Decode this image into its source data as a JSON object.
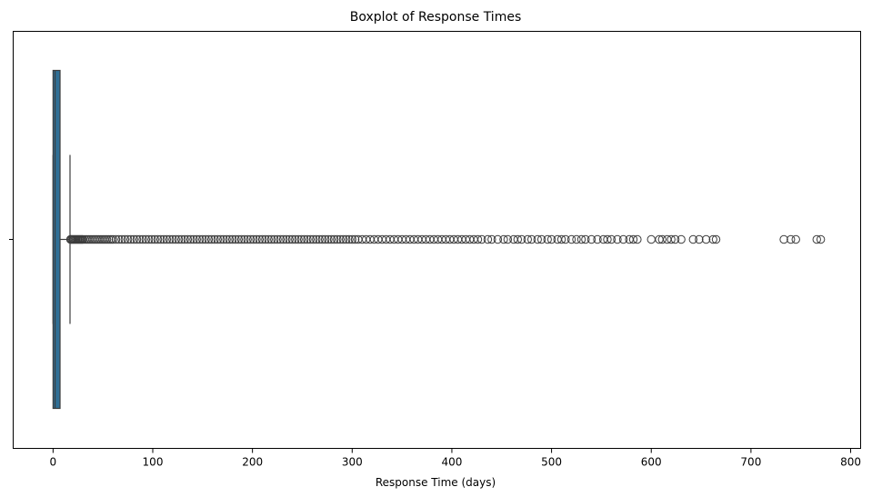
{
  "chart_data": {
    "type": "boxplot",
    "title": "Boxplot of Response Times",
    "xlabel": "Response Time (days)",
    "ylabel": "",
    "orientation": "horizontal",
    "xlim": [
      -40,
      810
    ],
    "xticks": [
      0,
      100,
      200,
      300,
      400,
      500,
      600,
      700,
      800
    ],
    "grid": false,
    "box": {
      "whisker_low": 0,
      "q1": 0,
      "median": 2,
      "q3": 7,
      "whisker_high": 17,
      "color": "#2f6f96"
    },
    "outliers": [
      17.5,
      18,
      19,
      20,
      21,
      22,
      23,
      24,
      25,
      26,
      27,
      28,
      29,
      30,
      32,
      34,
      36,
      38,
      40,
      42,
      44,
      46,
      48,
      50,
      52,
      54,
      56,
      58,
      60,
      63,
      66,
      69,
      72,
      75,
      78,
      81,
      84,
      87,
      90,
      93,
      96,
      99,
      102,
      105,
      108,
      111,
      114,
      117,
      120,
      123,
      126,
      129,
      132,
      135,
      138,
      141,
      144,
      147,
      150,
      153,
      156,
      159,
      162,
      165,
      168,
      171,
      174,
      177,
      180,
      183,
      186,
      189,
      192,
      195,
      198,
      201,
      204,
      207,
      210,
      213,
      216,
      219,
      222,
      225,
      228,
      231,
      234,
      237,
      240,
      243,
      246,
      249,
      252,
      255,
      258,
      261,
      264,
      267,
      270,
      273,
      276,
      279,
      282,
      285,
      288,
      291,
      294,
      297,
      300,
      303,
      306,
      310,
      314,
      318,
      322,
      326,
      330,
      334,
      338,
      342,
      346,
      350,
      354,
      358,
      362,
      366,
      370,
      374,
      378,
      382,
      386,
      390,
      394,
      398,
      402,
      406,
      410,
      414,
      418,
      422,
      426,
      430,
      436,
      440,
      446,
      452,
      456,
      462,
      466,
      470,
      476,
      480,
      486,
      490,
      496,
      500,
      506,
      510,
      514,
      520,
      525,
      530,
      534,
      540,
      546,
      552,
      556,
      560,
      566,
      572,
      578,
      582,
      586,
      600,
      608,
      611,
      616,
      620,
      624,
      630,
      642,
      648,
      655,
      662,
      665,
      733,
      740,
      745,
      766,
      770
    ]
  }
}
